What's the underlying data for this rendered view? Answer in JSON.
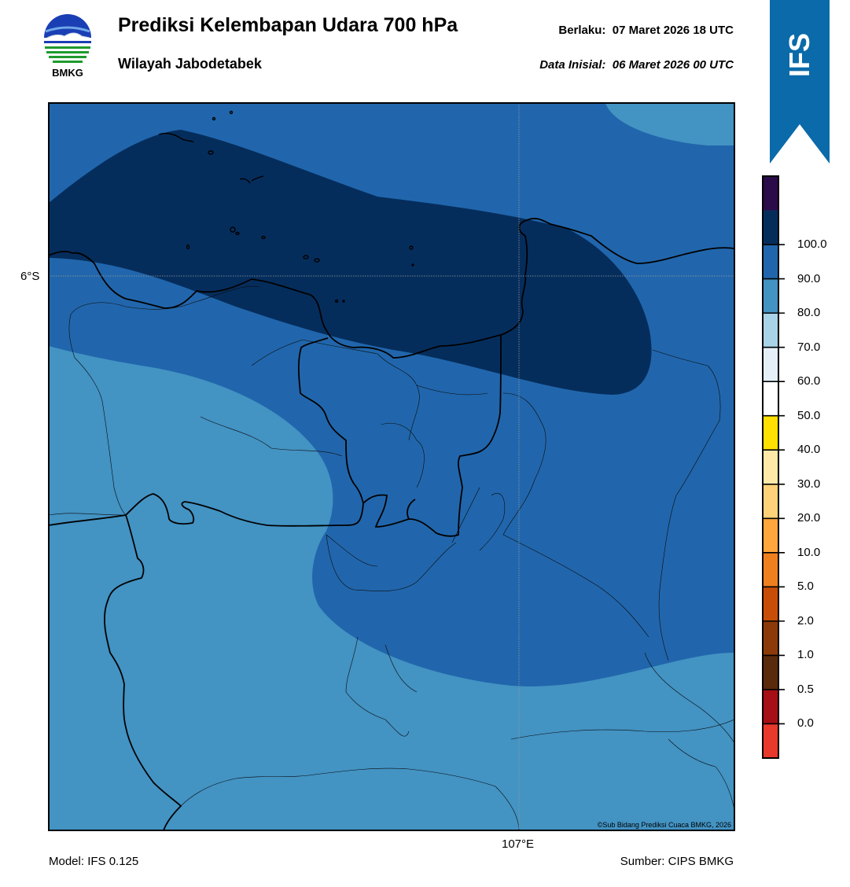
{
  "header": {
    "title": "Prediksi Kelembapan Udara 700 hPa",
    "subtitle": "Wilayah Jabodetabek",
    "valid_label": "Berlaku:",
    "valid_value": "07 Maret 2026 18 UTC",
    "init_label": "Data Inisial:",
    "init_value": "06 Maret 2026 00 UTC"
  },
  "logo": {
    "icon": "bmkg-logo",
    "text": "BMKG"
  },
  "model_badge": {
    "text": "IFS",
    "color": "#0b6aa9"
  },
  "map": {
    "lat_label": "6°S",
    "lon_label": "107°E",
    "credit": "©Sub Bidang Prediksi Cuaca BMKG, 2026"
  },
  "colorbar": {
    "levels": [
      "0.0",
      "0.5",
      "1.0",
      "2.0",
      "5.0",
      "10.0",
      "20.0",
      "30.0",
      "40.0",
      "50.0",
      "60.0",
      "70.0",
      "80.0",
      "90.0",
      "100.0"
    ],
    "colors": [
      "#e8392c",
      "#a50f15",
      "#5a2a0c",
      "#8c3a0a",
      "#c84e08",
      "#f0801e",
      "#ffa63c",
      "#ffd27a",
      "#ffe9a8",
      "#ffe000",
      "#ffffff",
      "#e4eff8",
      "#a9d3e8",
      "#4393c3",
      "#2166ac",
      "#052d5c",
      "#2b0b4a"
    ]
  },
  "footer": {
    "model": "Model: IFS 0.125",
    "source": "Sumber: CIPS BMKG"
  }
}
